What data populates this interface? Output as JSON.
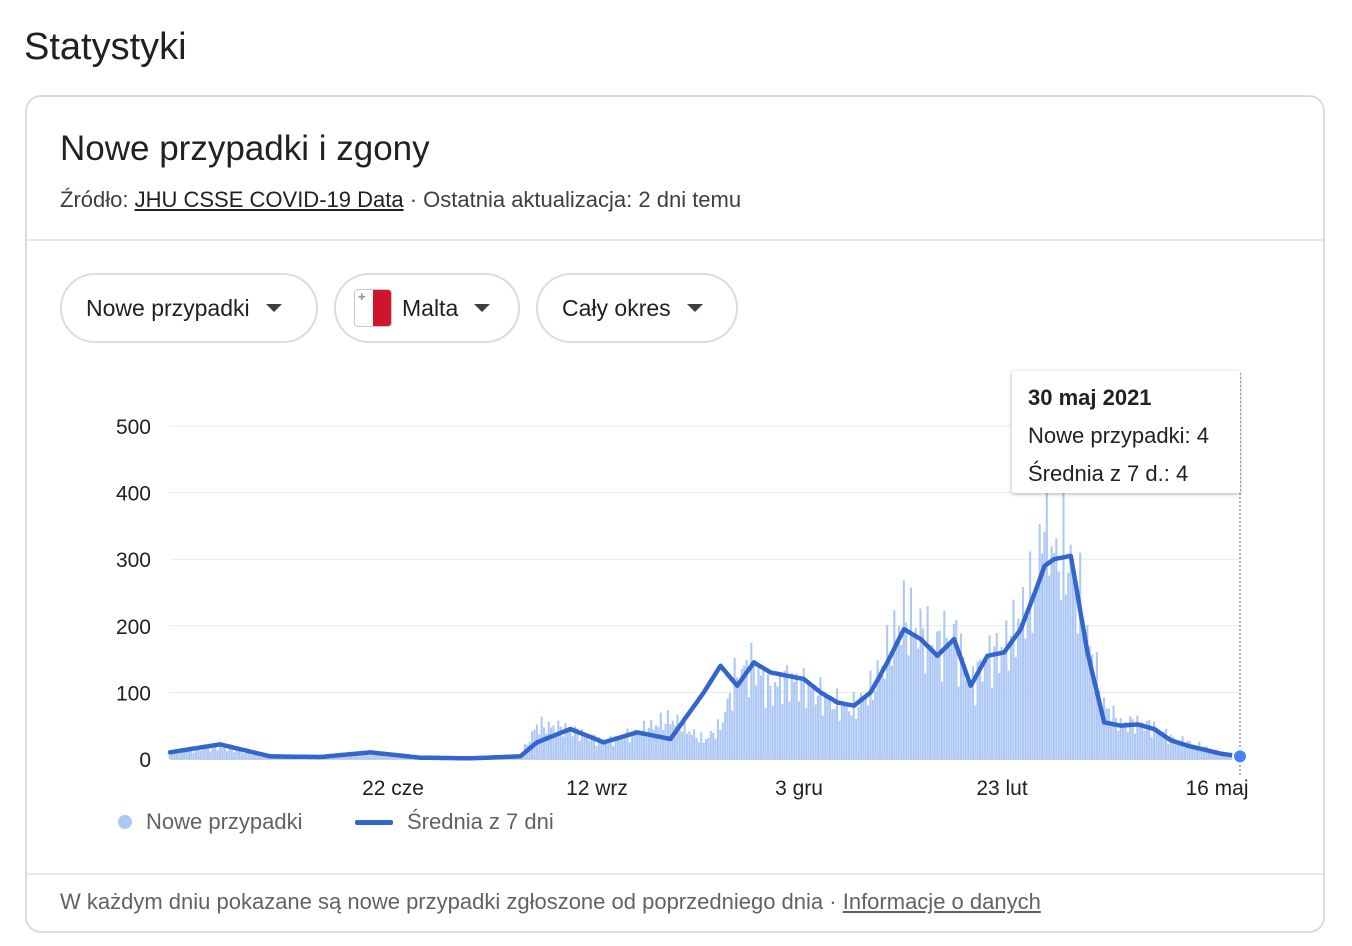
{
  "page": {
    "heading": "Statystyki"
  },
  "card": {
    "title": "Nowe przypadki i zgony",
    "source_prefix": "Źródło:",
    "source_link": "JHU CSSE COVID-19 Data",
    "source_sep": "·",
    "updated": "Ostatnia aktualizacja: 2 dni temu"
  },
  "filters": {
    "metric": "Nowe przypadki",
    "region": "Malta",
    "period": "Cały okres"
  },
  "tooltip": {
    "date": "30 maj 2021",
    "cases_line": "Nowe przypadki: 4",
    "avg_line": "Średnia z 7 d.: 4"
  },
  "legend": {
    "cases": "Nowe przypadki",
    "avg": "Średnia z 7 dni"
  },
  "footer": {
    "note": "W każdym dniu pokazane są nowe przypadki zgłoszone od poprzedniego dnia",
    "sep": "·",
    "link": "Informacje o danych"
  },
  "colors": {
    "bars": "#aec8f5",
    "line": "#3366cc",
    "grid": "#e8eaed"
  },
  "chart_data": {
    "type": "bar",
    "x_ticks": [
      "22 cze",
      "12 wrz",
      "3 gru",
      "23 lut",
      "16 maj"
    ],
    "ylim": [
      0,
      500
    ],
    "y_ticks": [
      "500",
      "400",
      "300",
      "200",
      "100",
      "0"
    ],
    "series": [
      {
        "name": "Nowe przypadki",
        "type": "bar",
        "x": [
          "2020-03-07",
          "2020-03-28",
          "2020-04-18",
          "2020-05-09",
          "2020-05-30",
          "2020-06-20",
          "2020-07-11",
          "2020-08-01",
          "2020-08-08",
          "2020-08-22",
          "2020-09-05",
          "2020-09-19",
          "2020-10-03",
          "2020-10-17",
          "2020-10-24",
          "2020-10-31",
          "2020-11-07",
          "2020-11-14",
          "2020-11-21",
          "2020-11-28",
          "2020-12-05",
          "2020-12-12",
          "2020-12-19",
          "2020-12-26",
          "2021-01-02",
          "2021-01-09",
          "2021-01-16",
          "2021-01-23",
          "2021-01-30",
          "2021-02-06",
          "2021-02-13",
          "2021-02-20",
          "2021-02-27",
          "2021-03-06",
          "2021-03-09",
          "2021-03-13",
          "2021-03-20",
          "2021-03-27",
          "2021-04-03",
          "2021-04-10",
          "2021-04-17",
          "2021-04-24",
          "2021-05-01",
          "2021-05-08",
          "2021-05-15",
          "2021-05-22",
          "2021-05-30"
        ],
        "y": [
          10,
          18,
          4,
          2,
          8,
          2,
          1,
          4,
          50,
          45,
          25,
          40,
          60,
          28,
          48,
          128,
          140,
          100,
          120,
          110,
          95,
          80,
          75,
          100,
          155,
          215,
          190,
          170,
          190,
          110,
          150,
          165,
          210,
          260,
          400,
          300,
          300,
          180,
          80,
          52,
          55,
          48,
          32,
          25,
          18,
          8,
          4
        ]
      },
      {
        "name": "Średnia z 7 dni",
        "type": "line",
        "x": [
          "2020-03-07",
          "2020-03-28",
          "2020-04-18",
          "2020-05-09",
          "2020-05-30",
          "2020-06-20",
          "2020-07-11",
          "2020-08-01",
          "2020-08-08",
          "2020-08-22",
          "2020-09-05",
          "2020-09-19",
          "2020-10-03",
          "2020-10-17",
          "2020-10-24",
          "2020-10-31",
          "2020-11-07",
          "2020-11-14",
          "2020-11-21",
          "2020-11-28",
          "2020-12-05",
          "2020-12-12",
          "2020-12-19",
          "2020-12-26",
          "2021-01-02",
          "2021-01-09",
          "2021-01-16",
          "2021-01-23",
          "2021-01-30",
          "2021-02-06",
          "2021-02-13",
          "2021-02-20",
          "2021-02-27",
          "2021-03-06",
          "2021-03-09",
          "2021-03-13",
          "2021-03-20",
          "2021-03-27",
          "2021-04-03",
          "2021-04-10",
          "2021-04-17",
          "2021-04-24",
          "2021-05-01",
          "2021-05-08",
          "2021-05-15",
          "2021-05-22",
          "2021-05-30"
        ],
        "y": [
          10,
          22,
          4,
          3,
          10,
          2,
          1,
          4,
          25,
          45,
          25,
          40,
          30,
          100,
          140,
          110,
          145,
          130,
          125,
          120,
          100,
          85,
          80,
          100,
          145,
          195,
          180,
          155,
          180,
          110,
          155,
          160,
          195,
          260,
          290,
          300,
          305,
          160,
          55,
          50,
          52,
          45,
          28,
          20,
          14,
          8,
          4
        ]
      }
    ]
  }
}
